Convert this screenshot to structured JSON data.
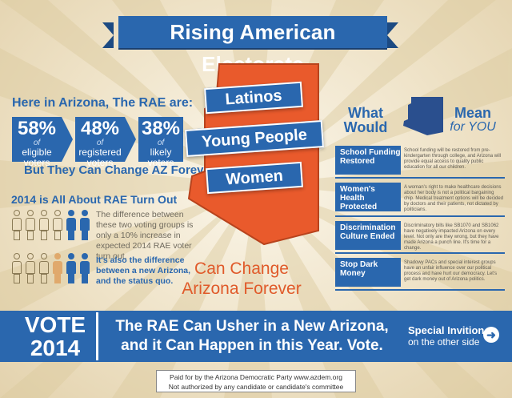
{
  "title": "Rising American Electorate",
  "left": {
    "heading": "Here in Arizona, The RAE are:",
    "stats": [
      {
        "pct": "58%",
        "of": "of",
        "label": "eligible voters"
      },
      {
        "pct": "48%",
        "of": "of",
        "label": "registered voters"
      },
      {
        "pct": "38%",
        "of": "of",
        "label": "likely voters"
      }
    ],
    "change": "But They Can Change AZ Forever",
    "turnout_heading": "2014 is All About RAE Turn Out",
    "turnout_text": "The difference between these two voting groups is only a 10% increase in expected 2014 RAE voter turn out.",
    "turnout_text2": "It's also the difference between a new Arizona, and the status quo."
  },
  "center": {
    "ribbons": [
      "Latinos",
      "Young People",
      "Women"
    ],
    "tag_line1": "Can Change",
    "tag_line2": "Arizona Forever"
  },
  "right": {
    "what": "What Would",
    "mean": "Mean",
    "for_you": "for YOU",
    "items": [
      {
        "tab": "School Funding Restored",
        "text": "School funding will be restored from pre-kindergarten through college, and Arizona will provide equal access to quality public education for all our children."
      },
      {
        "tab": "Women's Health Protected",
        "text": "A woman's right to make healthcare decisions about her body is not a political bargaining chip. Medical treatment options will be decided by doctors and their patients, not dictated by politicians."
      },
      {
        "tab": "Discrimination Culture Ended",
        "text": "Discriminatory bills like SB1070 and SB1062 have negatively impacted Arizona on every level. Not only are they wrong, but they have made Arizona a punch line. It's time for a change."
      },
      {
        "tab": "Stop Dark Money",
        "text": "Shadowy PACs and special interest groups have an unfair influence over our political process and have hurt our democracy. Let's get dark money out of Arizona politics."
      }
    ]
  },
  "bottom": {
    "vote1": "VOTE",
    "vote2": "2014",
    "usher_line1": "The RAE Can Usher in a New Arizona,",
    "usher_line2": "and it Can Happen in this Year. Vote.",
    "invite1": "Special Invition",
    "invite2": "on the other side",
    "go_icon": "arrow-right-circle-icon",
    "disclaimer1": "Paid for by the Arizona Democratic Party  www.azdem.org",
    "disclaimer2": "Not authorized by any candidate or candidate's committee"
  },
  "colors": {
    "blue": "#2a67ae",
    "orange": "#e05a2a",
    "tan": "#e0a96c",
    "cream": "#f5ecd9"
  }
}
